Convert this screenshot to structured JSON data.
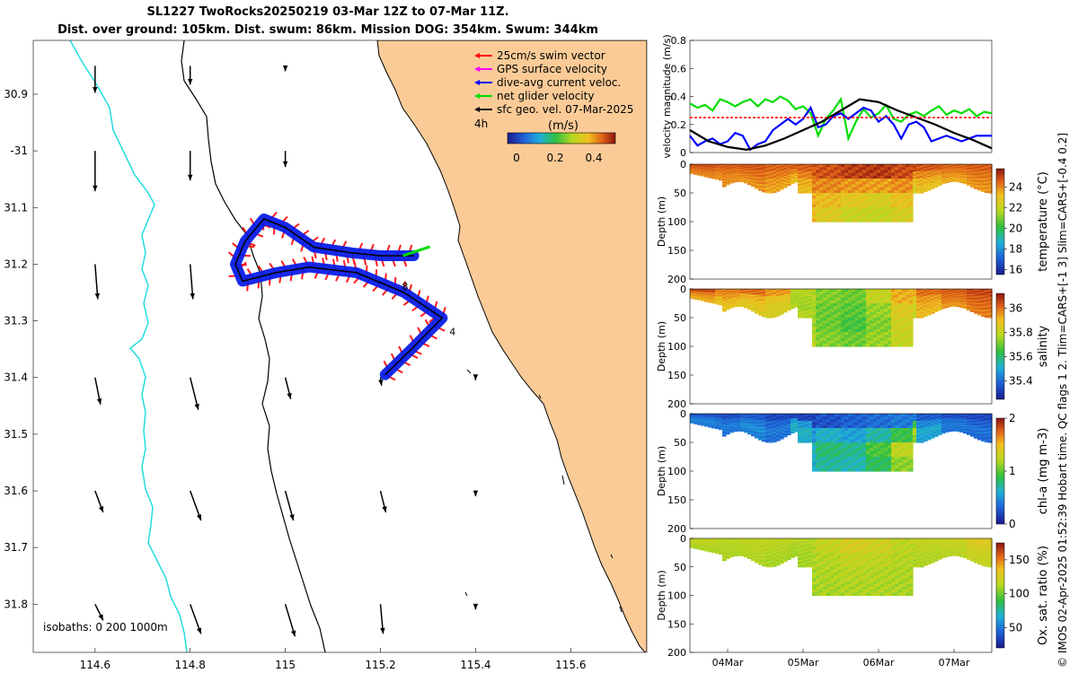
{
  "title": {
    "line1": "SL1227 TwoRocks20250219 03-Mar 12Z to 07-Mar 11Z.",
    "line2": "Dist. over ground: 105km. Dist. swum: 86km. Mission DOG: 354km. Swum: 344km"
  },
  "credit": "© IMOS 02-Apr-2025 01:52:39 Hobart time. QC flags 1  2. Tlim=CARS+[-1 3] Slim=CARS+[-0.4 0.2]",
  "map": {
    "xlim": [
      114.47,
      115.76
    ],
    "ylim": [
      -31.885,
      -30.805
    ],
    "xticks": [
      114.6,
      114.8,
      115,
      115.2,
      115.4,
      115.6
    ],
    "xtick_labels": [
      "114.6",
      "114.8",
      "115",
      "115.2",
      "115.4",
      "115.6"
    ],
    "yticks": [
      -30.9,
      -31,
      -31.1,
      -31.2,
      -31.3,
      -31.4,
      -31.5,
      -31.6,
      -31.7,
      -31.8
    ],
    "ytick_labels": [
      "30.9",
      "-31",
      "31.1",
      "31.2",
      "31.3",
      "31.4",
      "31.5",
      "31.6",
      "31.7",
      "31.8"
    ],
    "legend": [
      {
        "label": "25cm/s swim vector",
        "color": "#ff0000"
      },
      {
        "label": "GPS surface velocity",
        "color": "#ff00ff"
      },
      {
        "label": "dive-avg current veloc.",
        "color": "#0000ff"
      },
      {
        "label": "net glider velocity",
        "color": "#00dd00"
      },
      {
        "label": "sfc geo. vel. 07-Mar-2025",
        "color": "#000000"
      }
    ],
    "scale_label": "4h",
    "colorbar_label": "(m/s)",
    "colorbar_ticks": [
      "0",
      "0.2",
      "0.4"
    ],
    "isobath_label": "isobaths: 0   200  1000m",
    "track": [
      [
        115.21,
        -31.395
      ],
      [
        115.265,
        -31.35
      ],
      [
        115.33,
        -31.295
      ],
      [
        115.25,
        -31.25
      ],
      [
        115.15,
        -31.215
      ],
      [
        115.05,
        -31.205
      ],
      [
        114.98,
        -31.215
      ],
      [
        114.91,
        -31.23
      ],
      [
        114.895,
        -31.2
      ],
      [
        114.915,
        -31.16
      ],
      [
        114.955,
        -31.12
      ],
      [
        115.0,
        -31.135
      ],
      [
        115.06,
        -31.17
      ],
      [
        115.14,
        -31.18
      ],
      [
        115.2,
        -31.185
      ],
      [
        115.27,
        -31.185
      ]
    ],
    "track_labels": [
      {
        "text": "8",
        "lon": 115.245,
        "lat": -31.245
      },
      {
        "text": "4",
        "lon": 115.345,
        "lat": -31.325
      }
    ],
    "geo_vectors": [
      {
        "lon": 114.6,
        "lat": -30.85,
        "u": 0,
        "v": -0.5
      },
      {
        "lon": 114.8,
        "lat": -30.85,
        "u": 0,
        "v": -0.35
      },
      {
        "lon": 115.0,
        "lat": -30.85,
        "u": 0,
        "v": -0.1
      },
      {
        "lon": 114.6,
        "lat": -31.0,
        "u": 0,
        "v": -0.75
      },
      {
        "lon": 114.8,
        "lat": -31.0,
        "u": 0,
        "v": -0.55
      },
      {
        "lon": 115.0,
        "lat": -31.0,
        "u": 0,
        "v": -0.3
      },
      {
        "lon": 114.6,
        "lat": -31.2,
        "u": 0.05,
        "v": -0.65
      },
      {
        "lon": 114.8,
        "lat": -31.2,
        "u": 0.05,
        "v": -0.65
      },
      {
        "lon": 114.6,
        "lat": -31.4,
        "u": 0.1,
        "v": -0.5
      },
      {
        "lon": 114.8,
        "lat": -31.4,
        "u": 0.15,
        "v": -0.6
      },
      {
        "lon": 115.0,
        "lat": -31.4,
        "u": 0.1,
        "v": -0.4
      },
      {
        "lon": 115.2,
        "lat": -31.4,
        "u": 0.02,
        "v": -0.15
      },
      {
        "lon": 115.4,
        "lat": -31.4,
        "u": 0,
        "v": -0.05
      },
      {
        "lon": 114.6,
        "lat": -31.6,
        "u": 0.15,
        "v": -0.4
      },
      {
        "lon": 114.8,
        "lat": -31.6,
        "u": 0.2,
        "v": -0.55
      },
      {
        "lon": 115.0,
        "lat": -31.6,
        "u": 0.15,
        "v": -0.55
      },
      {
        "lon": 115.2,
        "lat": -31.6,
        "u": 0.1,
        "v": -0.4
      },
      {
        "lon": 115.4,
        "lat": -31.6,
        "u": 0,
        "v": -0.1
      },
      {
        "lon": 114.6,
        "lat": -31.8,
        "u": 0.15,
        "v": -0.3
      },
      {
        "lon": 114.8,
        "lat": -31.8,
        "u": 0.2,
        "v": -0.55
      },
      {
        "lon": 115.0,
        "lat": -31.8,
        "u": 0.18,
        "v": -0.6
      },
      {
        "lon": 115.2,
        "lat": -31.8,
        "u": 0.05,
        "v": -0.55
      },
      {
        "lon": 115.4,
        "lat": -31.8,
        "u": 0,
        "v": -0.1
      }
    ]
  },
  "chart_data": [
    {
      "type": "line",
      "title": "",
      "xlabel": "",
      "ylabel": "velocity magnitude (m/s)",
      "ylim": [
        0,
        0.8
      ],
      "yticks": [
        "0",
        "0.2",
        "0.4",
        "0.6",
        "0.8"
      ],
      "xlim": [
        3.5,
        7.5
      ],
      "series": [
        {
          "name": "net glider velocity",
          "color": "#00dd00",
          "x": [
            3.5,
            3.6,
            3.7,
            3.8,
            3.9,
            4.0,
            4.1,
            4.2,
            4.3,
            4.4,
            4.5,
            4.6,
            4.7,
            4.8,
            4.9,
            5.0,
            5.1,
            5.2,
            5.3,
            5.4,
            5.5,
            5.6,
            5.7,
            5.8,
            5.9,
            6.0,
            6.1,
            6.2,
            6.3,
            6.4,
            6.5,
            6.6,
            6.7,
            6.8,
            6.9,
            7.0,
            7.1,
            7.2,
            7.3,
            7.4,
            7.5
          ],
          "y": [
            0.35,
            0.32,
            0.34,
            0.3,
            0.38,
            0.36,
            0.33,
            0.36,
            0.38,
            0.33,
            0.38,
            0.36,
            0.4,
            0.37,
            0.31,
            0.33,
            0.28,
            0.12,
            0.24,
            0.3,
            0.38,
            0.1,
            0.22,
            0.31,
            0.25,
            0.28,
            0.34,
            0.24,
            0.22,
            0.27,
            0.29,
            0.26,
            0.3,
            0.33,
            0.27,
            0.3,
            0.28,
            0.31,
            0.26,
            0.29,
            0.28
          ]
        },
        {
          "name": "dive-avg current veloc.",
          "color": "#0000ff",
          "x": [
            3.5,
            3.6,
            3.7,
            3.8,
            3.9,
            4.0,
            4.1,
            4.2,
            4.3,
            4.4,
            4.5,
            4.6,
            4.7,
            4.8,
            4.9,
            5.0,
            5.1,
            5.2,
            5.3,
            5.4,
            5.5,
            5.6,
            5.7,
            5.8,
            5.9,
            6.0,
            6.1,
            6.2,
            6.3,
            6.4,
            6.5,
            6.6,
            6.7,
            6.8,
            6.9,
            7.0,
            7.1,
            7.2,
            7.3,
            7.4,
            7.5
          ],
          "y": [
            0.12,
            0.05,
            0.08,
            0.1,
            0.06,
            0.08,
            0.14,
            0.12,
            0.02,
            0.06,
            0.08,
            0.16,
            0.2,
            0.24,
            0.2,
            0.24,
            0.32,
            0.18,
            0.2,
            0.26,
            0.28,
            0.24,
            0.28,
            0.32,
            0.3,
            0.22,
            0.26,
            0.2,
            0.1,
            0.2,
            0.22,
            0.18,
            0.08,
            0.1,
            0.12,
            0.1,
            0.08,
            0.1,
            0.12,
            0.12,
            0.12
          ]
        },
        {
          "name": "sfc geo. vel.",
          "color": "#000000",
          "x": [
            3.5,
            3.75,
            4.0,
            4.25,
            4.5,
            4.75,
            5.0,
            5.25,
            5.5,
            5.75,
            6.0,
            6.25,
            6.5,
            6.75,
            7.0,
            7.25,
            7.5
          ],
          "y": [
            0.16,
            0.08,
            0.04,
            0.02,
            0.05,
            0.1,
            0.16,
            0.22,
            0.3,
            0.38,
            0.36,
            0.3,
            0.25,
            0.2,
            0.14,
            0.09,
            0.03
          ]
        },
        {
          "name": "25cm/s swim vector",
          "color": "#ff0000",
          "x": [
            3.5,
            7.5
          ],
          "y": [
            0.25,
            0.25
          ]
        }
      ]
    },
    {
      "type": "heatmap",
      "ylabel": "Depth (m)",
      "colorbar_label": "temperature (°C)",
      "ylim": [
        0,
        200
      ],
      "yticks": [
        "0",
        "50",
        "100",
        "150",
        "200"
      ],
      "cticks": [
        "16",
        "18",
        "20",
        "22",
        "24"
      ],
      "clim": [
        15.5,
        25.8
      ],
      "values": [
        [
          24.8,
          24.6,
          24.7,
          24.5,
          24.6,
          24.8,
          25.1,
          25.2,
          24.9,
          24.7,
          24.5,
          24.6
        ],
        [
          24.5,
          24.3,
          24.4,
          24.2,
          24.1,
          24.0,
          23.8,
          23.7,
          23.9,
          24.0,
          24.2,
          24.3
        ],
        [
          24.2,
          24.0,
          24.1,
          23.8,
          23.5,
          23.2,
          22.8,
          22.5,
          23.0,
          23.4,
          23.8,
          24.0
        ],
        [
          24.0,
          23.9,
          23.8,
          23.6,
          23.2,
          22.6,
          22.1,
          22.0,
          22.4,
          23.0,
          23.5,
          23.8
        ]
      ]
    },
    {
      "type": "heatmap",
      "ylabel": "Depth (m)",
      "colorbar_label": "salinity",
      "ylim": [
        0,
        200
      ],
      "yticks": [
        "0",
        "50",
        "100",
        "150",
        "200"
      ],
      "cticks": [
        "35.4",
        "35.6",
        "35.8",
        "36"
      ],
      "clim": [
        35.25,
        36.12
      ],
      "values": [
        [
          36.05,
          35.98,
          36.0,
          35.95,
          35.78,
          35.72,
          35.7,
          35.8,
          35.92,
          36.0,
          36.02,
          36.05
        ],
        [
          35.98,
          35.95,
          35.92,
          35.88,
          35.76,
          35.7,
          35.68,
          35.74,
          35.85,
          35.95,
          36.0,
          36.02
        ],
        [
          35.95,
          35.9,
          35.88,
          35.85,
          35.75,
          35.7,
          35.66,
          35.72,
          35.82,
          35.92,
          35.98,
          36.0
        ],
        [
          35.92,
          35.88,
          35.86,
          35.84,
          35.78,
          35.72,
          35.7,
          35.74,
          35.8,
          35.9,
          35.95,
          35.98
        ]
      ]
    },
    {
      "type": "heatmap",
      "ylabel": "Depth (m)",
      "colorbar_label": "chl-a (mg m-3)",
      "ylim": [
        0,
        200
      ],
      "yticks": [
        "0",
        "50",
        "100",
        "150",
        "200"
      ],
      "cticks": [
        "0",
        "1",
        "2"
      ],
      "clim": [
        0,
        2
      ],
      "values": [
        [
          0.25,
          0.22,
          0.28,
          0.2,
          0.18,
          0.24,
          0.3,
          0.35,
          0.4,
          0.28,
          0.22,
          0.2
        ],
        [
          0.38,
          0.35,
          0.4,
          0.32,
          0.5,
          0.62,
          0.55,
          0.7,
          0.9,
          0.45,
          0.35,
          0.3
        ],
        [
          0.45,
          0.42,
          0.48,
          0.4,
          0.65,
          0.8,
          0.75,
          0.95,
          1.25,
          0.6,
          0.4,
          0.38
        ],
        [
          0.4,
          0.38,
          0.42,
          0.36,
          0.6,
          0.72,
          0.68,
          0.85,
          1.1,
          0.55,
          0.38,
          0.34
        ]
      ]
    },
    {
      "type": "heatmap",
      "ylabel": "Depth (m)",
      "colorbar_label": "Ox. sat. ratio (%)",
      "ylim": [
        0,
        200
      ],
      "yticks": [
        "0",
        "50",
        "100",
        "150",
        "200"
      ],
      "cticks": [
        "50",
        "100",
        "150"
      ],
      "clim": [
        20,
        175
      ],
      "values": [
        [
          118,
          115,
          117,
          116,
          114,
          118,
          125,
          122,
          116,
          118,
          120,
          128
        ],
        [
          116,
          114,
          115,
          114,
          112,
          114,
          118,
          116,
          114,
          116,
          118,
          124
        ],
        [
          114,
          113,
          114,
          112,
          110,
          112,
          114,
          113,
          112,
          114,
          116,
          120
        ],
        [
          112,
          112,
          113,
          111,
          110,
          111,
          112,
          112,
          111,
          113,
          115,
          118
        ]
      ]
    }
  ],
  "depth_axis": {
    "xticks": [
      "04Mar",
      "05Mar",
      "06Mar",
      "07Mar"
    ]
  }
}
